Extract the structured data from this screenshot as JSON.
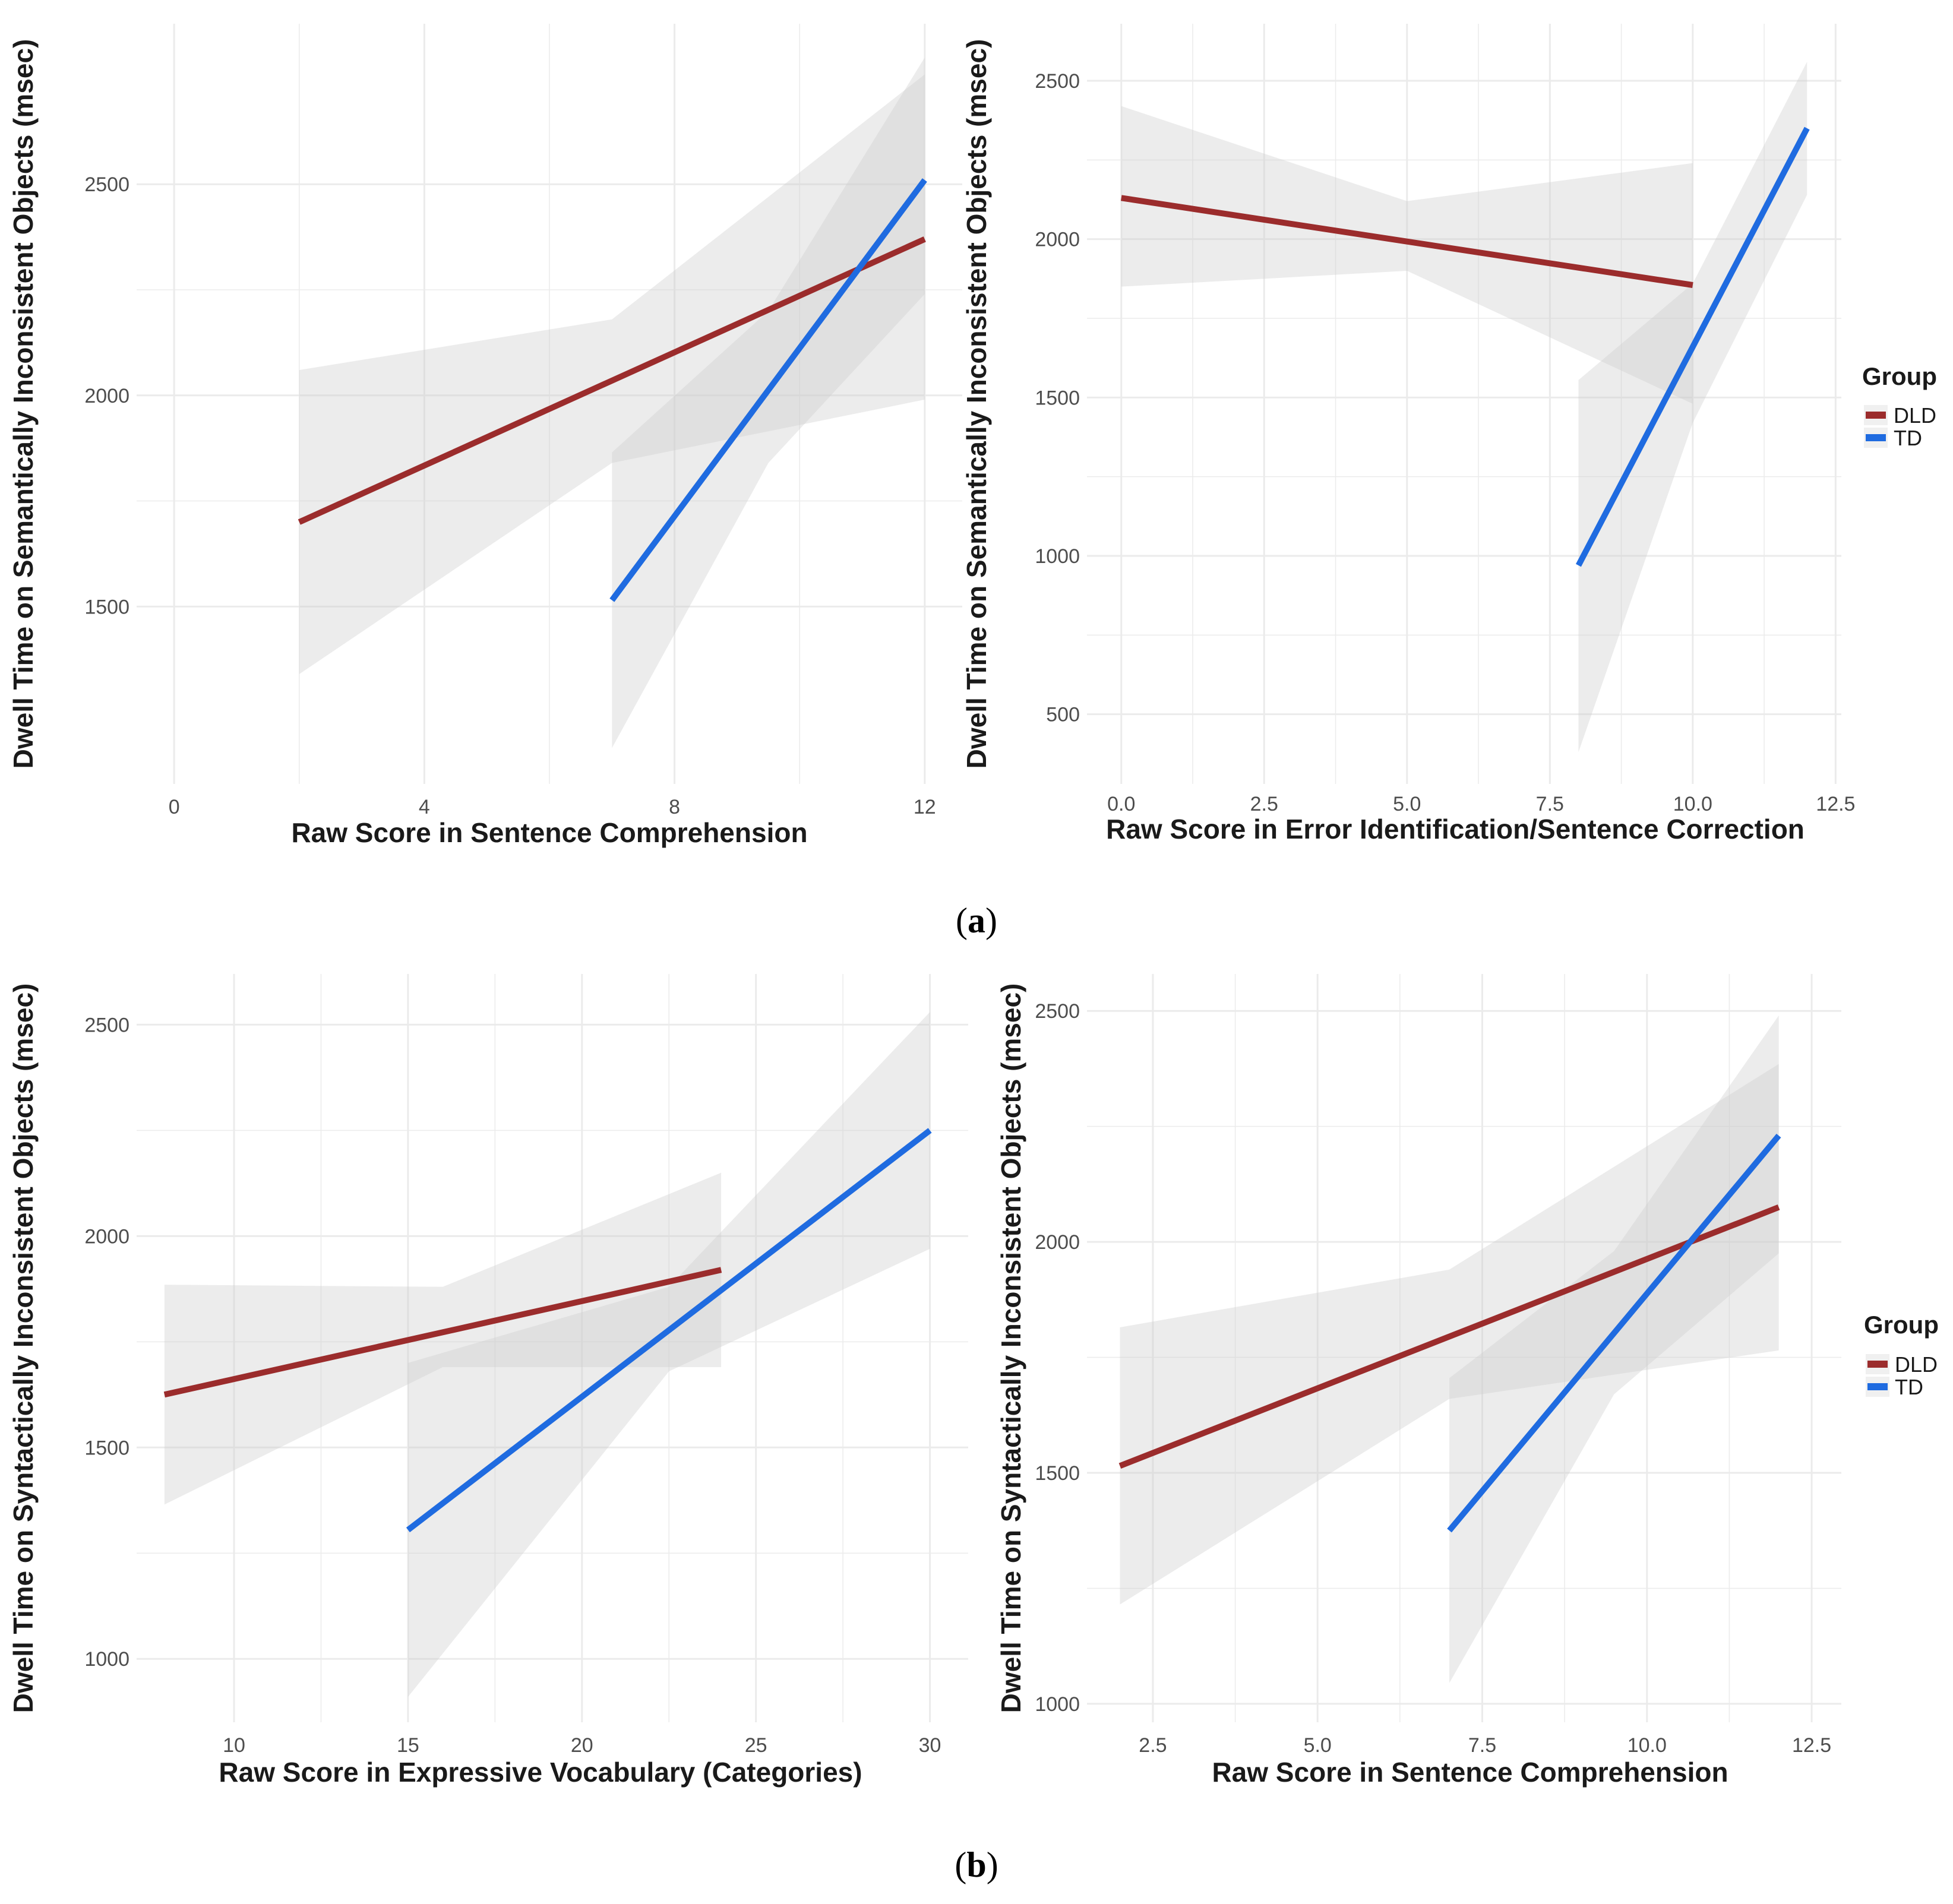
{
  "colors": {
    "DLD": "#9b2c2c",
    "TD": "#1f6be0",
    "band": "#cccccc",
    "grid": "#ebebeb"
  },
  "panel_labels": {
    "a_open": "(",
    "a": "a",
    "a_close": ")",
    "b_open": "(",
    "b": "b",
    "b_close": ")"
  },
  "chart_data": [
    {
      "type": "line",
      "title": "",
      "xlabel": "Raw Score in Sentence Comprehension",
      "ylabel": "Dwell Time on Semantically Inconsistent Objects (msec)",
      "xlim": [
        -0.6,
        12.6
      ],
      "ylim": [
        1080,
        2880
      ],
      "xticks": [
        0,
        4,
        8,
        12
      ],
      "xtick_labels": [
        "0",
        "4",
        "8",
        "12"
      ],
      "yticks": [
        1500,
        2000,
        2500
      ],
      "ytick_labels": [
        "1500",
        "2000",
        "2500"
      ],
      "series": [
        {
          "name": "DLD",
          "x": [
            2,
            12
          ],
          "y": [
            1700,
            2370
          ],
          "ci_lower": [
            1340,
            1990
          ],
          "ci_upper": [
            2060,
            2760
          ],
          "ci_mid": [
            {
              "x": 7,
              "lower": 1840,
              "upper": 2180
            }
          ]
        },
        {
          "name": "TD",
          "x": [
            7,
            12
          ],
          "y": [
            1515,
            2510
          ],
          "ci_lower": [
            1165,
            2240
          ],
          "ci_upper": [
            1865,
            2800
          ],
          "ci_mid": [
            {
              "x": 9.5,
              "lower": 1840,
              "upper": 2200
            }
          ]
        }
      ]
    },
    {
      "type": "line",
      "title": "",
      "xlabel": "Raw Score in Error Identification/Sentence Correction",
      "ylabel": "Dwell Time on Semantically Inconsistent Objects (msec)",
      "xlim": [
        -0.6,
        12.6
      ],
      "ylim": [
        280,
        2680
      ],
      "xticks": [
        0,
        2.5,
        5,
        7.5,
        10,
        12.5
      ],
      "xtick_labels": [
        "0.0",
        "2.5",
        "5.0",
        "7.5",
        "10.0",
        "12.5"
      ],
      "yticks": [
        500,
        1000,
        1500,
        2000,
        2500
      ],
      "ytick_labels": [
        "500",
        "1000",
        "1500",
        "2000",
        "2500"
      ],
      "series": [
        {
          "name": "DLD",
          "x": [
            0,
            10
          ],
          "y": [
            2130,
            1855
          ],
          "ci_lower": [
            1850,
            1480
          ],
          "ci_upper": [
            2420,
            2240
          ],
          "ci_mid": [
            {
              "x": 5,
              "lower": 1900,
              "upper": 2120
            }
          ]
        },
        {
          "name": "TD",
          "x": [
            8,
            12
          ],
          "y": [
            970,
            2350
          ],
          "ci_lower": [
            380,
            2140
          ],
          "ci_upper": [
            1555,
            2560
          ],
          "ci_mid": [
            {
              "x": 10,
              "lower": 1420,
              "upper": 1860
            }
          ]
        }
      ]
    },
    {
      "type": "line",
      "title": "",
      "xlabel": "Raw Score in Expressive Vocabulary (Categories)",
      "ylabel": "Dwell Time on Syntactically Inconsistent Objects (msec)",
      "xlim": [
        7.2,
        31.1
      ],
      "ylim": [
        850,
        2620
      ],
      "xticks": [
        10,
        15,
        20,
        25,
        30
      ],
      "xtick_labels": [
        "10",
        "15",
        "20",
        "25",
        "30"
      ],
      "yticks": [
        1000,
        1500,
        2000,
        2500
      ],
      "ytick_labels": [
        "1000",
        "1500",
        "2000",
        "2500"
      ],
      "series": [
        {
          "name": "DLD",
          "x": [
            8,
            24
          ],
          "y": [
            1625,
            1920
          ],
          "ci_lower": [
            1365,
            1690
          ],
          "ci_upper": [
            1885,
            2150
          ],
          "ci_mid": [
            {
              "x": 16,
              "lower": 1690,
              "upper": 1880
            }
          ]
        },
        {
          "name": "TD",
          "x": [
            15,
            30
          ],
          "y": [
            1305,
            2250
          ],
          "ci_lower": [
            910,
            1970
          ],
          "ci_upper": [
            1700,
            2530
          ],
          "ci_mid": [
            {
              "x": 22.5,
              "lower": 1680,
              "upper": 1880
            }
          ]
        }
      ]
    },
    {
      "type": "line",
      "title": "",
      "xlabel": "Raw Score in Sentence Comprehension",
      "ylabel": "Dwell Time on Syntactically Inconsistent Objects (msec)",
      "xlim": [
        1.5,
        12.95
      ],
      "ylim": [
        960,
        2580
      ],
      "xticks": [
        2.5,
        5,
        7.5,
        10,
        12.5
      ],
      "xtick_labels": [
        "2.5",
        "5.0",
        "7.5",
        "10.0",
        "12.5"
      ],
      "yticks": [
        1000,
        1500,
        2000,
        2500
      ],
      "ytick_labels": [
        "1000",
        "1500",
        "2000",
        "2500"
      ],
      "series": [
        {
          "name": "DLD",
          "x": [
            2,
            12
          ],
          "y": [
            1515,
            2075
          ],
          "ci_lower": [
            1215,
            1765
          ],
          "ci_upper": [
            1815,
            2385
          ],
          "ci_mid": [
            {
              "x": 7,
              "lower": 1660,
              "upper": 1940
            }
          ]
        },
        {
          "name": "TD",
          "x": [
            7,
            12
          ],
          "y": [
            1375,
            2230
          ],
          "ci_lower": [
            1045,
            1975
          ],
          "ci_upper": [
            1705,
            2490
          ],
          "ci_mid": [
            {
              "x": 9.5,
              "lower": 1670,
              "upper": 1980
            }
          ]
        }
      ]
    }
  ],
  "legends": [
    {
      "title": "Group",
      "items": [
        {
          "label": "DLD"
        },
        {
          "label": "TD"
        }
      ]
    },
    {
      "title": "Group",
      "items": [
        {
          "label": "DLD"
        },
        {
          "label": "TD"
        }
      ]
    }
  ]
}
